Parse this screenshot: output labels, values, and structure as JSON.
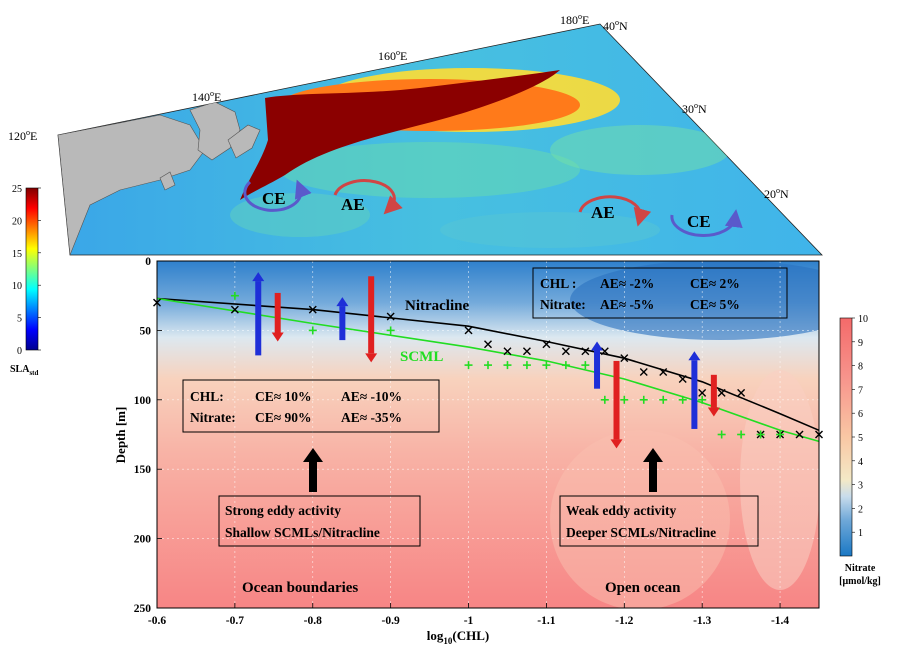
{
  "map": {
    "lon_labels": [
      "120°E",
      "140°E",
      "160°E",
      "180°E"
    ],
    "lat_labels": [
      "40°N",
      "30°N",
      "20°N"
    ],
    "eddies": [
      {
        "label": "CE",
        "kind": "cyclonic",
        "color": "#5a5acb"
      },
      {
        "label": "AE",
        "kind": "anticyclonic",
        "color": "#d04545"
      },
      {
        "label": "AE",
        "kind": "anticyclonic",
        "color": "#d04545"
      },
      {
        "label": "CE",
        "kind": "cyclonic",
        "color": "#5a5acb"
      }
    ],
    "colorbar": {
      "label": "SLA_std",
      "ticks": [
        0,
        5,
        10,
        15,
        20,
        25
      ],
      "min": 0,
      "max": 25
    }
  },
  "chart_data": {
    "type": "scatter",
    "xlabel": "log10(CHL)",
    "ylabel": "Depth [m]",
    "xlim": [
      -0.6,
      -1.45
    ],
    "ylim": [
      0,
      250
    ],
    "x_ticks": [
      "-0.6",
      "-0.7",
      "-0.8",
      "-0.9",
      "-1",
      "-1.1",
      "-1.2",
      "-1.3",
      "-1.4"
    ],
    "y_ticks": [
      "0",
      "50",
      "100",
      "150",
      "200",
      "250"
    ],
    "nitrate_colorbar": {
      "label": "Nitrate",
      "unit": "[μmol/kg]",
      "ticks": [
        1,
        2,
        3,
        4,
        5,
        6,
        7,
        8,
        9,
        10
      ],
      "min": 0,
      "max": 10
    },
    "series": [
      {
        "name": "Nitracline",
        "marker": "x",
        "color": "#000000",
        "points": [
          [
            -0.6,
            30
          ],
          [
            -0.7,
            35
          ],
          [
            -0.8,
            35
          ],
          [
            -0.9,
            40
          ],
          [
            -1.0,
            50
          ],
          [
            -1.025,
            60
          ],
          [
            -1.05,
            65
          ],
          [
            -1.075,
            65
          ],
          [
            -1.1,
            60
          ],
          [
            -1.125,
            65
          ],
          [
            -1.15,
            65
          ],
          [
            -1.175,
            65
          ],
          [
            -1.2,
            70
          ],
          [
            -1.225,
            80
          ],
          [
            -1.25,
            80
          ],
          [
            -1.275,
            85
          ],
          [
            -1.3,
            95
          ],
          [
            -1.325,
            95
          ],
          [
            -1.35,
            95
          ],
          [
            -1.375,
            125
          ],
          [
            -1.4,
            125
          ],
          [
            -1.425,
            125
          ],
          [
            -1.45,
            125
          ]
        ],
        "fit": [
          [
            -0.6,
            27
          ],
          [
            -0.8,
            35
          ],
          [
            -1.0,
            47
          ],
          [
            -1.1,
            58
          ],
          [
            -1.2,
            70
          ],
          [
            -1.3,
            87
          ],
          [
            -1.4,
            110
          ],
          [
            -1.45,
            122
          ]
        ]
      },
      {
        "name": "SCML",
        "marker": "+",
        "color": "#22dd22",
        "points": [
          [
            -0.7,
            25
          ],
          [
            -0.8,
            50
          ],
          [
            -0.9,
            50
          ],
          [
            -1.0,
            75
          ],
          [
            -1.025,
            75
          ],
          [
            -1.05,
            75
          ],
          [
            -1.075,
            75
          ],
          [
            -1.1,
            75
          ],
          [
            -1.125,
            75
          ],
          [
            -1.15,
            75
          ],
          [
            -1.175,
            100
          ],
          [
            -1.2,
            100
          ],
          [
            -1.225,
            100
          ],
          [
            -1.25,
            100
          ],
          [
            -1.275,
            100
          ],
          [
            -1.3,
            100
          ],
          [
            -1.325,
            125
          ],
          [
            -1.35,
            125
          ],
          [
            -1.375,
            125
          ],
          [
            -1.4,
            125
          ]
        ],
        "fit": [
          [
            -0.6,
            27
          ],
          [
            -0.8,
            45
          ],
          [
            -1.0,
            62
          ],
          [
            -1.1,
            72
          ],
          [
            -1.2,
            85
          ],
          [
            -1.3,
            102
          ],
          [
            -1.4,
            122
          ],
          [
            -1.45,
            130
          ]
        ]
      }
    ],
    "arrows": [
      {
        "x": -0.73,
        "top": 8,
        "bottom": 68,
        "color": "#1e2fd8",
        "dir": "up"
      },
      {
        "x": -0.755,
        "top": 23,
        "bottom": 58,
        "color": "#e02020",
        "dir": "down"
      },
      {
        "x": -0.838,
        "top": 26,
        "bottom": 57,
        "color": "#1e2fd8",
        "dir": "up"
      },
      {
        "x": -0.875,
        "top": 11,
        "bottom": 73,
        "color": "#e02020",
        "dir": "down"
      },
      {
        "x": -1.165,
        "top": 58,
        "bottom": 92,
        "color": "#1e2fd8",
        "dir": "up"
      },
      {
        "x": -1.19,
        "top": 72,
        "bottom": 135,
        "color": "#e02020",
        "dir": "down"
      },
      {
        "x": -1.29,
        "top": 65,
        "bottom": 121,
        "color": "#1e2fd8",
        "dir": "up"
      },
      {
        "x": -1.315,
        "top": 82,
        "bottom": 112,
        "color": "#e02020",
        "dir": "down"
      }
    ],
    "annotations": {
      "nitracline_label": "Nitracline",
      "scml_label": "SCML",
      "box_left": {
        "line1": {
          "name": "CHL:",
          "ce": "CE≈ 10%",
          "ae": "AE≈ -10%"
        },
        "line2": {
          "name": "Nitrate:",
          "ce": "CE≈ 90%",
          "ae": "AE≈ -35%"
        }
      },
      "box_right": {
        "line1": {
          "name": "CHL :",
          "ae": "AE≈ -2%",
          "ce": "CE≈ 2%"
        },
        "line2": {
          "name": "Nitrate:",
          "ae": "AE≈ -5%",
          "ce": "CE≈ 5%"
        }
      },
      "left_note": [
        "Strong eddy activity",
        "Shallow SCMLs/Nitracline"
      ],
      "right_note": [
        "Weak eddy activity",
        "Deeper SCMLs/Nitracline"
      ],
      "region_left": "Ocean boundaries",
      "region_right": "Open ocean"
    }
  }
}
